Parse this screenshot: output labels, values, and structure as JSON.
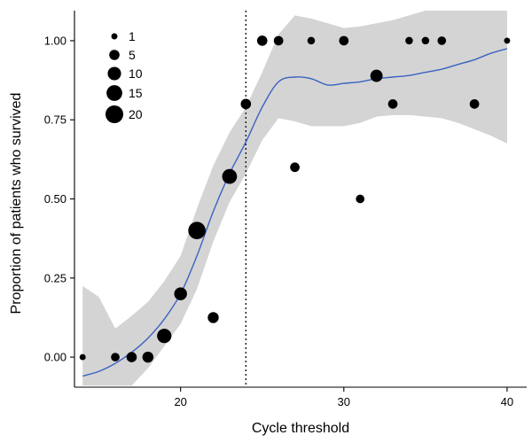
{
  "chart_data": {
    "type": "scatter",
    "xlabel": "Cycle threshold",
    "ylabel": "Proportion of patients who survived",
    "xlim": [
      13.5,
      41.2
    ],
    "ylim": [
      -0.095,
      1.095
    ],
    "x_ticks": [
      20,
      30,
      40
    ],
    "y_ticks": [
      0.0,
      0.25,
      0.5,
      0.75,
      1.0
    ],
    "y_tick_labels": [
      "0.00",
      "0.25",
      "0.50",
      "0.75",
      "1.00"
    ],
    "cutoff_x": 24,
    "grid": false,
    "legend_position": "top-left",
    "size_legend": [
      {
        "label": "1",
        "value": 1
      },
      {
        "label": "5",
        "value": 5
      },
      {
        "label": "10",
        "value": 10
      },
      {
        "label": "15",
        "value": 15
      },
      {
        "label": "20",
        "value": 20
      }
    ],
    "points": [
      {
        "x": 14,
        "y": 0.0,
        "n": 1
      },
      {
        "x": 16,
        "y": 0.0,
        "n": 3
      },
      {
        "x": 17,
        "y": 0.0,
        "n": 5
      },
      {
        "x": 18,
        "y": 0.0,
        "n": 6
      },
      {
        "x": 19,
        "y": 0.067,
        "n": 12
      },
      {
        "x": 20,
        "y": 0.2,
        "n": 9
      },
      {
        "x": 21,
        "y": 0.4,
        "n": 19
      },
      {
        "x": 22,
        "y": 0.125,
        "n": 6
      },
      {
        "x": 23,
        "y": 0.571,
        "n": 13
      },
      {
        "x": 24,
        "y": 0.8,
        "n": 5
      },
      {
        "x": 25,
        "y": 1.0,
        "n": 5
      },
      {
        "x": 26,
        "y": 1.0,
        "n": 4
      },
      {
        "x": 27,
        "y": 0.6,
        "n": 4
      },
      {
        "x": 28,
        "y": 1.0,
        "n": 2
      },
      {
        "x": 30,
        "y": 1.0,
        "n": 4
      },
      {
        "x": 31,
        "y": 0.5,
        "n": 3
      },
      {
        "x": 32,
        "y": 0.889,
        "n": 8
      },
      {
        "x": 33,
        "y": 0.8,
        "n": 4
      },
      {
        "x": 34,
        "y": 1.0,
        "n": 2
      },
      {
        "x": 35,
        "y": 1.0,
        "n": 2
      },
      {
        "x": 36,
        "y": 1.0,
        "n": 3
      },
      {
        "x": 38,
        "y": 0.8,
        "n": 4
      },
      {
        "x": 40,
        "y": 1.0,
        "n": 1
      }
    ],
    "smooth": {
      "x": [
        14,
        15,
        16,
        17,
        18,
        19,
        20,
        21,
        22,
        23,
        24,
        25,
        26,
        27,
        28,
        29,
        30,
        31,
        32,
        33,
        34,
        35,
        36,
        37,
        38,
        39,
        40
      ],
      "y": [
        -0.06,
        -0.045,
        -0.02,
        0.015,
        0.06,
        0.12,
        0.2,
        0.32,
        0.46,
        0.58,
        0.68,
        0.79,
        0.87,
        0.885,
        0.88,
        0.86,
        0.865,
        0.87,
        0.88,
        0.885,
        0.89,
        0.9,
        0.91,
        0.925,
        0.94,
        0.96,
        0.975
      ],
      "lower": [
        -0.09,
        -0.09,
        -0.09,
        -0.09,
        -0.035,
        0.035,
        0.105,
        0.215,
        0.365,
        0.49,
        0.58,
        0.685,
        0.755,
        0.745,
        0.73,
        0.73,
        0.73,
        0.74,
        0.76,
        0.765,
        0.765,
        0.76,
        0.755,
        0.74,
        0.72,
        0.7,
        0.675
      ],
      "upper": [
        0.225,
        0.19,
        0.09,
        0.13,
        0.175,
        0.24,
        0.32,
        0.47,
        0.605,
        0.71,
        0.79,
        0.9,
        1.02,
        1.08,
        1.07,
        1.055,
        1.04,
        1.045,
        1.055,
        1.065,
        1.08,
        1.095,
        1.095,
        1.095,
        1.095,
        1.095,
        1.095
      ]
    },
    "colors": {
      "points": "#000000",
      "smooth_line": "#3a62c2",
      "ribbon": "#d4d4d4",
      "axis": "#000000"
    }
  }
}
